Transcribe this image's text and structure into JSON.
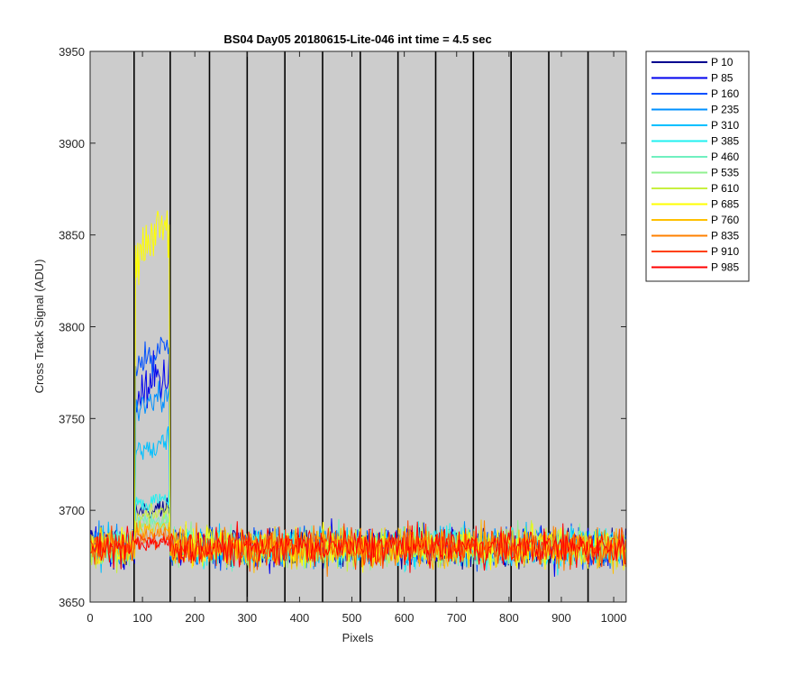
{
  "chart_data": {
    "type": "line",
    "title": "BS04 Day05 20180615-Lite-046 int time = 4.5 sec",
    "xlabel": "Pixels",
    "ylabel": "Cross Track Signal (ADU)",
    "xlim": [
      0,
      1024
    ],
    "ylim": [
      3650,
      3950
    ],
    "xticks": [
      0,
      100,
      200,
      300,
      400,
      500,
      600,
      700,
      800,
      900,
      1000
    ],
    "yticks": [
      3650,
      3700,
      3750,
      3800,
      3850,
      3900,
      3950
    ],
    "x_range": [
      1,
      1024
    ],
    "noise_band": [
      3660,
      3700
    ],
    "baseline": 3680,
    "plot_background": "#cccccc",
    "segment_boundaries": [
      84,
      153,
      228,
      300,
      372,
      444,
      516,
      588,
      660,
      732,
      804,
      876,
      951
    ],
    "bump_range": [
      84,
      153
    ],
    "legend_location": "outside-right",
    "series": [
      {
        "name": "P 10",
        "color": "#00008f",
        "bump_level": 3700
      },
      {
        "name": "P 85",
        "color": "#0000ee",
        "bump_level": 3770
      },
      {
        "name": "P 160",
        "color": "#0050ff",
        "bump_level": 3785
      },
      {
        "name": "P 235",
        "color": "#0090ff",
        "bump_level": 3760
      },
      {
        "name": "P 310",
        "color": "#00c0ff",
        "bump_level": 3735
      },
      {
        "name": "P 385",
        "color": "#20f0f0",
        "bump_level": 3705
      },
      {
        "name": "P 460",
        "color": "#70f0c0",
        "bump_level": 3695
      },
      {
        "name": "P 535",
        "color": "#90f090",
        "bump_level": 3692
      },
      {
        "name": "P 610",
        "color": "#c8f040",
        "bump_level": 3698
      },
      {
        "name": "P 685",
        "color": "#ffff00",
        "bump_level": 3850
      },
      {
        "name": "P 760",
        "color": "#ffc000",
        "bump_level": 3690
      },
      {
        "name": "P 835",
        "color": "#ff8000",
        "bump_level": 3686
      },
      {
        "name": "P 910",
        "color": "#ff4000",
        "bump_level": 3683
      },
      {
        "name": "P 985",
        "color": "#ff0000",
        "bump_level": 3682
      }
    ]
  }
}
